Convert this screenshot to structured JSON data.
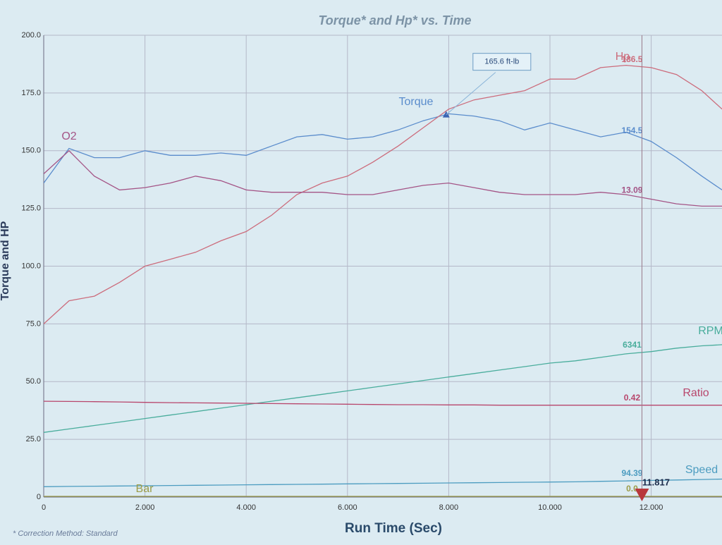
{
  "chart_data": {
    "type": "line",
    "title": "Torque* and Hp* vs. Time",
    "xlabel": "Run Time (Sec)",
    "ylabel": "Torque and HP",
    "footnote": "* Correction Method: Standard",
    "x": [
      0,
      0.5,
      1,
      1.5,
      2,
      2.5,
      3,
      3.5,
      4,
      4.5,
      5,
      5.5,
      6,
      6.5,
      7,
      7.5,
      8,
      8.5,
      9,
      9.5,
      10,
      10.5,
      11,
      11.5,
      12,
      12.5,
      13,
      13.4
    ],
    "xlim": [
      0,
      13.4
    ],
    "xticks": [
      0,
      {
        "value": 2,
        "label": "2.000"
      },
      {
        "value": 4,
        "label": "4.000"
      },
      {
        "value": 6,
        "label": "6.000"
      },
      {
        "value": 8,
        "label": "8.000"
      },
      {
        "value": 10,
        "label": "10.000"
      },
      {
        "value": 12,
        "label": "12.000"
      }
    ],
    "ylim": [
      0,
      200
    ],
    "yticks": [
      0,
      {
        "value": 25,
        "label": "25.0"
      },
      {
        "value": 50,
        "label": "50.0"
      },
      {
        "value": 75,
        "label": "75.0"
      },
      {
        "value": 100,
        "label": "100.0"
      },
      {
        "value": 125,
        "label": "125.0"
      },
      {
        "value": 150,
        "label": "150.0"
      },
      {
        "value": 175,
        "label": "175.0"
      },
      {
        "value": 200,
        "label": "200.0"
      }
    ],
    "grid": true,
    "cursor": 11.817,
    "annotation": {
      "text": "165.6 ft-lb",
      "x": 7.95,
      "y": 165.6
    },
    "series": [
      {
        "name": "Torque",
        "color": "#5a8ccc",
        "readout": "154.5",
        "values": [
          136,
          151,
          147,
          147,
          150,
          148,
          148,
          149,
          148,
          152,
          156,
          157,
          155,
          156,
          159,
          163,
          166,
          165,
          163,
          159,
          162,
          159,
          156,
          158,
          154,
          147,
          139,
          133
        ]
      },
      {
        "name": "Hp",
        "color": "#cc6c7c",
        "readout": "186.5",
        "values": [
          75,
          85,
          87,
          93,
          100,
          103,
          106,
          111,
          115,
          122,
          131,
          136,
          139,
          145,
          152,
          160,
          168,
          172,
          174,
          176,
          181,
          181,
          186,
          187,
          186,
          183,
          176,
          168
        ]
      },
      {
        "name": "O2",
        "color": "#a45486",
        "readout": "13.09",
        "values": [
          140,
          150,
          139,
          133,
          134,
          136,
          139,
          137,
          133,
          132,
          132,
          132,
          131,
          131,
          133,
          135,
          136,
          134,
          132,
          131,
          131,
          131,
          132,
          131,
          129,
          127,
          126,
          126
        ]
      },
      {
        "name": "RPM",
        "color": "#49ad9c",
        "readout": "6341",
        "values": [
          28,
          29.5,
          31,
          32.5,
          34,
          35.5,
          37,
          38.5,
          40,
          41.5,
          43,
          44.5,
          46,
          47.5,
          49,
          50.5,
          52,
          53.5,
          55,
          56.5,
          58,
          59,
          60.5,
          62,
          63,
          64.5,
          65.5,
          66
        ]
      },
      {
        "name": "Ratio",
        "color": "#b8466c",
        "readout": "0.42",
        "values": [
          41.5,
          41.4,
          41.3,
          41.2,
          41,
          40.9,
          40.8,
          40.7,
          40.6,
          40.5,
          40.4,
          40.3,
          40.2,
          40.1,
          40,
          40,
          39.9,
          39.9,
          39.8,
          39.8,
          39.8,
          39.8,
          39.8,
          39.8,
          39.8,
          39.8,
          39.8,
          39.8
        ]
      },
      {
        "name": "Speed",
        "color": "#4c9cc0",
        "readout": "94.39",
        "values": [
          4.5,
          4.6,
          4.7,
          4.8,
          4.9,
          5,
          5.1,
          5.2,
          5.3,
          5.4,
          5.5,
          5.6,
          5.7,
          5.8,
          5.9,
          6,
          6.1,
          6.2,
          6.3,
          6.4,
          6.5,
          6.6,
          6.8,
          7,
          7.2,
          7.4,
          7.6,
          7.8
        ]
      },
      {
        "name": "Bar",
        "color": "#9c9c48",
        "readout": "0.0",
        "values": [
          0.3,
          0.3,
          0.3,
          0.3,
          0.3,
          0.3,
          0.3,
          0.3,
          0.3,
          0.3,
          0.3,
          0.3,
          0.3,
          0.3,
          0.3,
          0.3,
          0.3,
          0.3,
          0.3,
          0.3,
          0.3,
          0.3,
          0.3,
          0.3,
          0.3,
          0.3,
          0.3,
          0.3
        ]
      }
    ]
  }
}
